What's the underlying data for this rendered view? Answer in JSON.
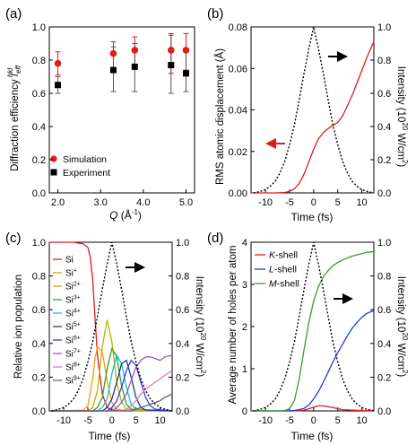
{
  "chart_data": [
    {
      "panel_label": "(a)",
      "type": "scatter",
      "xlabel_main": "Q",
      "xlabel_unit": "(Å",
      "xlabel_sup": "-1",
      "xlabel_close": ")",
      "ylabel": "Diffraction efficiency",
      "ylabel_sym": "I",
      "ylabel_sub": "eff",
      "ylabel_sup": "hkl",
      "xlim": [
        1.8,
        5.2
      ],
      "ylim": [
        0,
        1.0
      ],
      "xticks": [
        "2.0",
        "3.0",
        "4.0",
        "5.0"
      ],
      "yticks": [
        "0.0",
        "0.2",
        "0.4",
        "0.6",
        "0.8",
        "1.0"
      ],
      "legend_placement": "bottom-left",
      "series": [
        {
          "name": "Simulation",
          "color": "#e41a1c",
          "marker": "circle",
          "x": [
            2.0,
            3.3,
            3.8,
            4.65,
            5.0
          ],
          "y": [
            0.78,
            0.84,
            0.86,
            0.86,
            0.86
          ],
          "yerr_low": [
            0.71,
            0.74,
            0.77,
            0.72,
            0.74
          ],
          "yerr_high": [
            0.85,
            0.91,
            0.94,
            0.96,
            0.96
          ]
        },
        {
          "name": "Experiment",
          "color": "#000000",
          "marker": "square",
          "x": [
            2.0,
            3.3,
            3.8,
            4.65,
            5.0
          ],
          "y": [
            0.65,
            0.74,
            0.76,
            0.77,
            0.72
          ],
          "yerr_low": [
            0.6,
            0.61,
            0.61,
            0.6,
            0.61
          ],
          "yerr_high": [
            0.7,
            0.88,
            0.9,
            0.95,
            0.86
          ]
        }
      ]
    },
    {
      "panel_label": "(b)",
      "type": "line",
      "xlabel": "Time (fs)",
      "ylabel": "RMS atomic displacement (Å)",
      "ylabel_right": "Intensity (10",
      "ylabel_right_sup": "20",
      "ylabel_right_tail": " W/cm",
      "ylabel_right_sup2": "2",
      "ylabel_right_close": ")",
      "xlim": [
        -13,
        12.5
      ],
      "ylim": [
        0,
        0.08
      ],
      "ylim_right": [
        0,
        1.0
      ],
      "xticks": [
        "-10",
        "-5",
        "0",
        "5",
        "10"
      ],
      "yticks": [
        "0.00",
        "0.02",
        "0.04",
        "0.06",
        "0.08"
      ],
      "yticks_right": [
        "0.0",
        "0.2",
        "0.4",
        "0.6",
        "0.8",
        "1.0"
      ],
      "series": [
        {
          "color": "#e41a1c",
          "axis": "left",
          "x": [
            -13,
            -10,
            -8,
            -6,
            -5,
            -4,
            -3,
            -2,
            -1,
            0,
            1,
            2,
            3,
            4,
            5,
            6,
            7,
            8,
            9,
            10,
            11,
            12.5
          ],
          "y": [
            0,
            0,
            0,
            0.0002,
            0.0008,
            0.002,
            0.0045,
            0.009,
            0.015,
            0.021,
            0.026,
            0.029,
            0.031,
            0.0325,
            0.034,
            0.037,
            0.042,
            0.047,
            0.053,
            0.059,
            0.065,
            0.073
          ]
        },
        {
          "color": "#000000",
          "axis": "right",
          "dashed": true,
          "x": [
            -12.5,
            -11,
            -10,
            -9,
            -8,
            -7,
            -6,
            -5,
            -4,
            -3,
            -2,
            -1,
            0,
            1,
            2,
            3,
            4,
            5,
            6,
            7,
            8,
            9,
            10,
            11,
            12.5
          ],
          "y": [
            0,
            0.01,
            0.02,
            0.04,
            0.07,
            0.12,
            0.19,
            0.29,
            0.41,
            0.56,
            0.72,
            0.87,
            1.0,
            0.87,
            0.72,
            0.56,
            0.41,
            0.29,
            0.19,
            0.12,
            0.07,
            0.04,
            0.02,
            0.01,
            0
          ]
        }
      ]
    },
    {
      "panel_label": "(c)",
      "type": "line",
      "xlabel": "Time (fs)",
      "ylabel": "Relative ion population",
      "ylabel_right": "Intensity (10",
      "ylabel_right_sup": "20",
      "ylabel_right_tail": " W/cm",
      "ylabel_right_sup2": "2",
      "ylabel_right_close": ")",
      "xlim": [
        -13,
        12.5
      ],
      "ylim": [
        0,
        1.0
      ],
      "ylim_right": [
        0,
        1.0
      ],
      "xticks": [
        "-10",
        "-5",
        "0",
        "5",
        "10"
      ],
      "yticks": [
        "0.0",
        "0.2",
        "0.4",
        "0.6",
        "0.8",
        "1.0"
      ],
      "yticks_right": [
        "0.0",
        "0.2",
        "0.4",
        "0.6",
        "0.8",
        "1.0"
      ],
      "legend_placement": "top-left",
      "series": [
        {
          "name": "Si",
          "sup": "",
          "color": "#e41a1c",
          "x": [
            -13,
            -8,
            -6,
            -5,
            -4.5,
            -4,
            -3.5,
            -3,
            -2,
            -1,
            0,
            2,
            5,
            12.5
          ],
          "y": [
            1.0,
            1.0,
            0.99,
            0.97,
            0.91,
            0.78,
            0.55,
            0.33,
            0.1,
            0.02,
            0.005,
            0,
            0,
            0
          ]
        },
        {
          "name": "Si",
          "sup": "+",
          "color": "#ff9900",
          "x": [
            -13,
            -6,
            -5,
            -4,
            -3.5,
            -3,
            -2,
            -1,
            0,
            1,
            3,
            12.5
          ],
          "y": [
            0,
            0.005,
            0.03,
            0.19,
            0.31,
            0.38,
            0.35,
            0.18,
            0.05,
            0.01,
            0,
            0
          ]
        },
        {
          "name": "Si",
          "sup": "2+",
          "color": "#b5b500",
          "x": [
            -13,
            -5,
            -4,
            -3,
            -2,
            -1,
            0,
            1,
            2,
            3,
            12.5
          ],
          "y": [
            0,
            0,
            0.02,
            0.12,
            0.38,
            0.54,
            0.41,
            0.17,
            0.05,
            0.01,
            0
          ]
        },
        {
          "name": "Si",
          "sup": "3+",
          "color": "#33a02c",
          "x": [
            -13,
            -4,
            -3,
            -2,
            -1,
            0,
            1,
            2,
            3,
            4,
            12.5
          ],
          "y": [
            0,
            0,
            0.02,
            0.08,
            0.25,
            0.37,
            0.32,
            0.15,
            0.04,
            0.01,
            0
          ]
        },
        {
          "name": "Si",
          "sup": "4+",
          "color": "#17becf",
          "x": [
            -13,
            -3,
            -2,
            -1,
            0,
            1,
            2,
            3,
            4,
            5,
            12.5
          ],
          "y": [
            0,
            0,
            0.02,
            0.07,
            0.22,
            0.33,
            0.28,
            0.14,
            0.04,
            0.01,
            0
          ]
        },
        {
          "name": "Si",
          "sup": "5+",
          "color": "#1f3a93",
          "x": [
            -13,
            -2,
            -1,
            0,
            1,
            2,
            3,
            4,
            5,
            6,
            7,
            12.5
          ],
          "y": [
            0,
            0,
            0.02,
            0.07,
            0.17,
            0.28,
            0.3,
            0.2,
            0.08,
            0.02,
            0.005,
            0
          ]
        },
        {
          "name": "Si",
          "sup": "6+",
          "color": "#3b3bd8",
          "x": [
            -13,
            -1,
            0,
            1,
            2,
            3,
            4,
            5,
            6,
            7,
            8,
            9,
            12.5
          ],
          "y": [
            0,
            0,
            0.02,
            0.06,
            0.14,
            0.24,
            0.3,
            0.27,
            0.17,
            0.08,
            0.03,
            0.01,
            0
          ]
        },
        {
          "name": "Si",
          "sup": "7+",
          "color": "#9b59b6",
          "x": [
            -13,
            0,
            1,
            2,
            3,
            4,
            5,
            6,
            7,
            8,
            9,
            10,
            11,
            12.5
          ],
          "y": [
            0,
            0,
            0.02,
            0.05,
            0.1,
            0.18,
            0.26,
            0.3,
            0.32,
            0.32,
            0.31,
            0.3,
            0.32,
            0.33
          ]
        },
        {
          "name": "Si",
          "sup": "8+",
          "color": "#e377c2",
          "x": [
            -13,
            2,
            3,
            4,
            5,
            6,
            7,
            8,
            9,
            10,
            11,
            12.5
          ],
          "y": [
            0,
            0,
            0.01,
            0.03,
            0.06,
            0.1,
            0.13,
            0.15,
            0.17,
            0.19,
            0.21,
            0.24
          ]
        },
        {
          "name": "Si",
          "sup": "9+",
          "color": "#666666",
          "x": [
            -13,
            4,
            5,
            6,
            7,
            8,
            9,
            10,
            11,
            12.5
          ],
          "y": [
            0,
            0,
            0.01,
            0.02,
            0.03,
            0.04,
            0.05,
            0.06,
            0.08,
            0.1
          ]
        },
        {
          "color": "#000000",
          "axis": "right",
          "dashed": true,
          "x": [
            -12.5,
            -11,
            -10,
            -9,
            -8,
            -7,
            -6,
            -5,
            -4,
            -3,
            -2,
            -1,
            0,
            1,
            2,
            3,
            4,
            5,
            6,
            7,
            8,
            9,
            10,
            11,
            12.5
          ],
          "y": [
            0,
            0.01,
            0.02,
            0.04,
            0.07,
            0.12,
            0.19,
            0.29,
            0.41,
            0.56,
            0.72,
            0.87,
            1.0,
            0.87,
            0.72,
            0.56,
            0.41,
            0.29,
            0.19,
            0.12,
            0.07,
            0.04,
            0.02,
            0.01,
            0
          ]
        }
      ]
    },
    {
      "panel_label": "(d)",
      "type": "line",
      "xlabel": "Time (fs)",
      "ylabel": "Average number of holes per atom",
      "ylabel_right": "Intensity (10",
      "ylabel_right_sup": "20",
      "ylabel_right_tail": " W/cm",
      "ylabel_right_sup2": "2",
      "ylabel_right_close": ")",
      "xlim": [
        -13,
        12.5
      ],
      "ylim": [
        0,
        4
      ],
      "ylim_right": [
        0,
        1.0
      ],
      "xticks": [
        "-10",
        "-5",
        "0",
        "5",
        "10"
      ],
      "yticks": [
        "0",
        "1",
        "2",
        "3",
        "4"
      ],
      "yticks_right": [
        "0.0",
        "0.2",
        "0.4",
        "0.6",
        "0.8",
        "1.0"
      ],
      "legend_placement": "top-left",
      "series": [
        {
          "name": "K-shell",
          "letter": "K",
          "color": "#e41a1c",
          "x": [
            -13,
            -4,
            -3,
            -2,
            -1,
            0,
            1,
            2,
            3,
            4,
            5,
            6,
            8,
            10,
            12.5
          ],
          "y": [
            0,
            0,
            0.005,
            0.02,
            0.05,
            0.09,
            0.12,
            0.12,
            0.1,
            0.08,
            0.05,
            0.03,
            0.02,
            0.01,
            0.01
          ]
        },
        {
          "name": "L-shell",
          "letter": "L",
          "color": "#1f3ad8",
          "x": [
            -13,
            -5,
            -4,
            -3,
            -2,
            -1,
            0,
            1,
            2,
            3,
            4,
            5,
            6,
            7,
            8,
            9,
            10,
            11,
            12.5
          ],
          "y": [
            0,
            0,
            0.01,
            0.03,
            0.06,
            0.14,
            0.28,
            0.46,
            0.68,
            0.92,
            1.16,
            1.38,
            1.58,
            1.78,
            1.96,
            2.1,
            2.22,
            2.31,
            2.38
          ]
        },
        {
          "name": "M-shell",
          "letter": "M",
          "color": "#33a02c",
          "x": [
            -13,
            -7,
            -6,
            -5,
            -4,
            -3,
            -2,
            -1,
            0,
            1,
            2,
            3,
            4,
            5,
            6,
            7,
            8,
            9,
            10,
            11,
            12.5
          ],
          "y": [
            0,
            0,
            0.01,
            0.05,
            0.25,
            0.75,
            1.45,
            2.1,
            2.6,
            2.95,
            3.18,
            3.33,
            3.44,
            3.52,
            3.58,
            3.63,
            3.67,
            3.7,
            3.73,
            3.76,
            3.78
          ]
        },
        {
          "color": "#000000",
          "axis": "right",
          "dashed": true,
          "x": [
            -12.5,
            -11,
            -10,
            -9,
            -8,
            -7,
            -6,
            -5,
            -4,
            -3,
            -2,
            -1,
            0,
            1,
            2,
            3,
            4,
            5,
            6,
            7,
            8,
            9,
            10,
            11,
            12.5
          ],
          "y": [
            0,
            0.01,
            0.02,
            0.04,
            0.07,
            0.12,
            0.19,
            0.29,
            0.41,
            0.56,
            0.72,
            0.87,
            1.0,
            0.87,
            0.72,
            0.56,
            0.41,
            0.29,
            0.19,
            0.12,
            0.07,
            0.04,
            0.02,
            0.01,
            0
          ]
        }
      ]
    }
  ]
}
